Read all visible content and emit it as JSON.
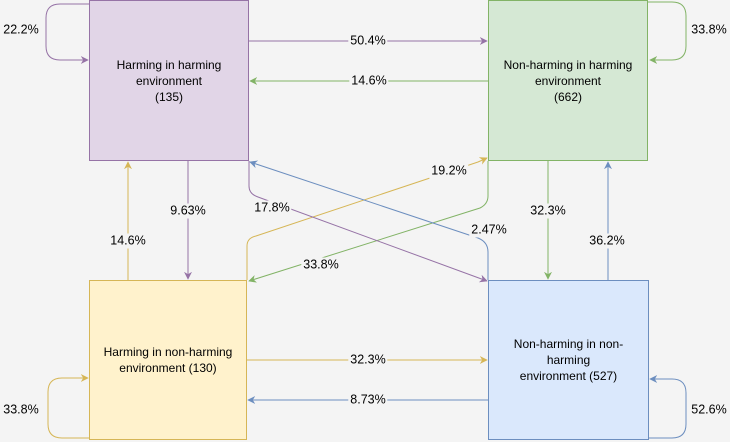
{
  "colors": {
    "purple_fill": "#e1d5e7",
    "purple_stroke": "#9673a6",
    "green_fill": "#d5e8d4",
    "green_stroke": "#82b366",
    "yellow_fill": "#fff2cc",
    "yellow_stroke": "#d6b656",
    "blue_fill": "#dae8fc",
    "blue_stroke": "#6c8ebf",
    "background": "#f4f4f4"
  },
  "nodes": {
    "hh": {
      "line1": "Harming in harming",
      "line2": "environment",
      "line3": "(135)"
    },
    "nh": {
      "line1": "Non-harming in harming",
      "line2": "environment",
      "line3": "(662)"
    },
    "hn": {
      "line1": "Harming in non-harming",
      "line2": "environment (130)"
    },
    "nn": {
      "line1": "Non-harming in non-harming",
      "line2": "environment (527)"
    }
  },
  "edges": [
    {
      "from": "hh",
      "to": "hh",
      "label": "22.2%"
    },
    {
      "from": "hh",
      "to": "nh",
      "label": "50.4%"
    },
    {
      "from": "nh",
      "to": "hh",
      "label": "14.6%"
    },
    {
      "from": "nh",
      "to": "nh",
      "label": "33.8%"
    },
    {
      "from": "hn",
      "to": "nh",
      "label": "19.2%"
    },
    {
      "from": "hh",
      "to": "hn",
      "label": "9.63%"
    },
    {
      "from": "hh",
      "to": "nn",
      "label": "17.8%"
    },
    {
      "from": "nn",
      "to": "hh",
      "label": "2.47%"
    },
    {
      "from": "nh",
      "to": "nn",
      "label": "32.3%"
    },
    {
      "from": "nn",
      "to": "nh",
      "label": "36.2%"
    },
    {
      "from": "hn",
      "to": "hh",
      "label": "14.6%"
    },
    {
      "from": "nh",
      "to": "hn",
      "label": "33.8%"
    },
    {
      "from": "hn",
      "to": "nn",
      "label": "32.3%"
    },
    {
      "from": "nn",
      "to": "hn",
      "label": "8.73%"
    },
    {
      "from": "hn",
      "to": "hn",
      "label": "33.8%"
    },
    {
      "from": "nn",
      "to": "nn",
      "label": "52.6%"
    }
  ]
}
